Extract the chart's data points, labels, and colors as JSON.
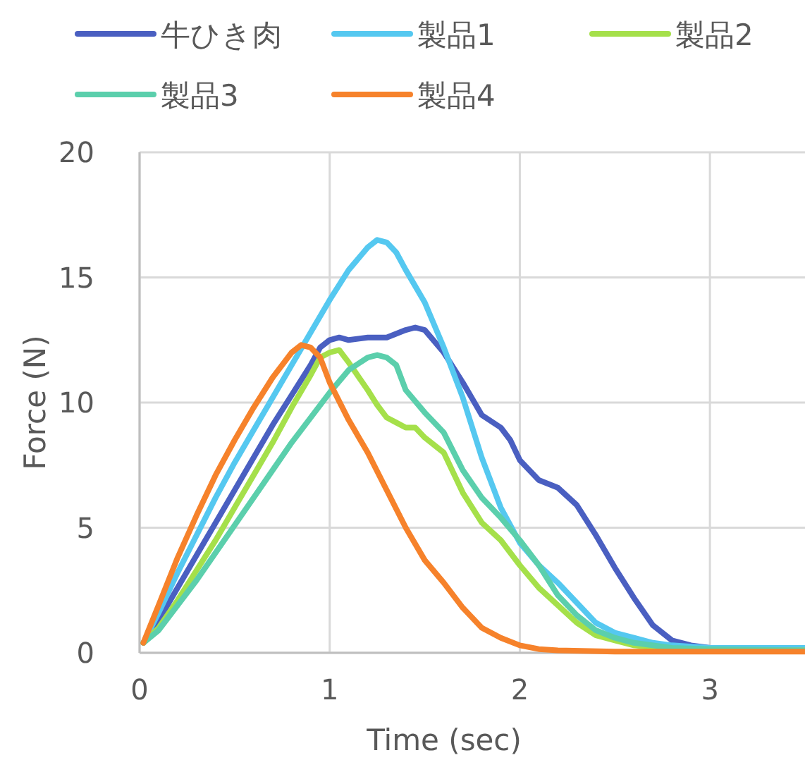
{
  "chart_data": {
    "type": "line",
    "xlabel": "Time (sec)",
    "ylabel": "Force (N)",
    "xlim": [
      0,
      3.5
    ],
    "ylim": [
      0,
      20
    ],
    "xticks": [
      0,
      1,
      2,
      3
    ],
    "yticks": [
      0,
      5,
      10,
      15,
      20
    ],
    "grid": true,
    "legend": "top",
    "marker": "none",
    "line_style": "solid",
    "series": [
      {
        "name": "牛ひき肉",
        "color": "#4a5fc1",
        "x": [
          0.02,
          0.1,
          0.2,
          0.3,
          0.4,
          0.5,
          0.6,
          0.7,
          0.8,
          0.9,
          0.95,
          1.0,
          1.05,
          1.1,
          1.2,
          1.3,
          1.4,
          1.45,
          1.5,
          1.6,
          1.7,
          1.8,
          1.9,
          1.95,
          2.0,
          2.1,
          2.2,
          2.3,
          2.4,
          2.5,
          2.6,
          2.7,
          2.8,
          2.9,
          3.0
        ],
        "values": [
          0.4,
          1.3,
          2.6,
          3.9,
          5.2,
          6.5,
          7.8,
          9.1,
          10.3,
          11.5,
          12.2,
          12.5,
          12.6,
          12.5,
          12.6,
          12.6,
          12.9,
          13.0,
          12.9,
          12.0,
          10.8,
          9.5,
          9.0,
          8.5,
          7.7,
          6.9,
          6.6,
          5.9,
          4.7,
          3.4,
          2.2,
          1.1,
          0.5,
          0.3,
          0.2
        ]
      },
      {
        "name": "製品1",
        "color": "#55c8f0",
        "x": [
          0.02,
          0.1,
          0.2,
          0.3,
          0.4,
          0.5,
          0.6,
          0.7,
          0.8,
          0.9,
          1.0,
          1.1,
          1.2,
          1.25,
          1.3,
          1.35,
          1.4,
          1.5,
          1.6,
          1.7,
          1.8,
          1.9,
          2.0,
          2.1,
          2.2,
          2.3,
          2.4,
          2.5,
          2.6,
          2.7,
          2.8,
          3.0,
          3.5
        ],
        "values": [
          0.4,
          1.6,
          3.2,
          4.7,
          6.2,
          7.6,
          8.9,
          10.2,
          11.5,
          12.8,
          14.1,
          15.3,
          16.2,
          16.5,
          16.4,
          16.0,
          15.3,
          14.0,
          12.2,
          10.2,
          7.8,
          5.8,
          4.4,
          3.5,
          2.8,
          2.0,
          1.2,
          0.8,
          0.6,
          0.4,
          0.3,
          0.2,
          0.2
        ]
      },
      {
        "name": "製品2",
        "color": "#a5e04a",
        "x": [
          0.02,
          0.1,
          0.2,
          0.3,
          0.4,
          0.5,
          0.6,
          0.7,
          0.8,
          0.9,
          0.95,
          1.0,
          1.05,
          1.1,
          1.2,
          1.25,
          1.3,
          1.35,
          1.4,
          1.45,
          1.5,
          1.6,
          1.7,
          1.8,
          1.9,
          2.0,
          2.1,
          2.2,
          2.3,
          2.4,
          2.5,
          2.6,
          2.8,
          3.0,
          3.5
        ],
        "values": [
          0.4,
          1.0,
          2.1,
          3.3,
          4.5,
          5.8,
          7.1,
          8.4,
          9.8,
          11.1,
          11.8,
          12.0,
          12.1,
          11.6,
          10.5,
          9.9,
          9.4,
          9.2,
          9.0,
          9.0,
          8.6,
          8.0,
          6.4,
          5.2,
          4.5,
          3.5,
          2.6,
          1.9,
          1.2,
          0.7,
          0.5,
          0.3,
          0.15,
          0.1,
          0.1
        ]
      },
      {
        "name": "製品3",
        "color": "#5bcfac",
        "x": [
          0.02,
          0.1,
          0.2,
          0.3,
          0.4,
          0.5,
          0.6,
          0.7,
          0.8,
          0.9,
          1.0,
          1.1,
          1.2,
          1.25,
          1.3,
          1.35,
          1.4,
          1.5,
          1.6,
          1.7,
          1.8,
          1.9,
          2.0,
          2.1,
          2.2,
          2.3,
          2.4,
          2.5,
          2.6,
          2.8,
          3.0,
          3.5
        ],
        "values": [
          0.4,
          0.9,
          1.9,
          2.9,
          4.0,
          5.1,
          6.2,
          7.3,
          8.4,
          9.4,
          10.4,
          11.3,
          11.8,
          11.9,
          11.8,
          11.5,
          10.5,
          9.6,
          8.8,
          7.3,
          6.2,
          5.4,
          4.5,
          3.5,
          2.3,
          1.5,
          0.9,
          0.6,
          0.4,
          0.2,
          0.15,
          0.1
        ]
      },
      {
        "name": "製品4",
        "color": "#f6822b",
        "x": [
          0.02,
          0.1,
          0.2,
          0.3,
          0.4,
          0.5,
          0.6,
          0.7,
          0.8,
          0.85,
          0.9,
          0.95,
          1.0,
          1.1,
          1.2,
          1.3,
          1.4,
          1.5,
          1.6,
          1.7,
          1.8,
          1.9,
          2.0,
          2.1,
          2.2,
          2.5,
          3.0,
          3.5
        ],
        "values": [
          0.4,
          1.9,
          3.8,
          5.5,
          7.1,
          8.5,
          9.8,
          11.0,
          12.0,
          12.3,
          12.2,
          11.8,
          10.8,
          9.3,
          8.0,
          6.5,
          5.0,
          3.7,
          2.8,
          1.8,
          1.0,
          0.6,
          0.3,
          0.15,
          0.1,
          0.05,
          0.05,
          0.05
        ]
      }
    ]
  }
}
